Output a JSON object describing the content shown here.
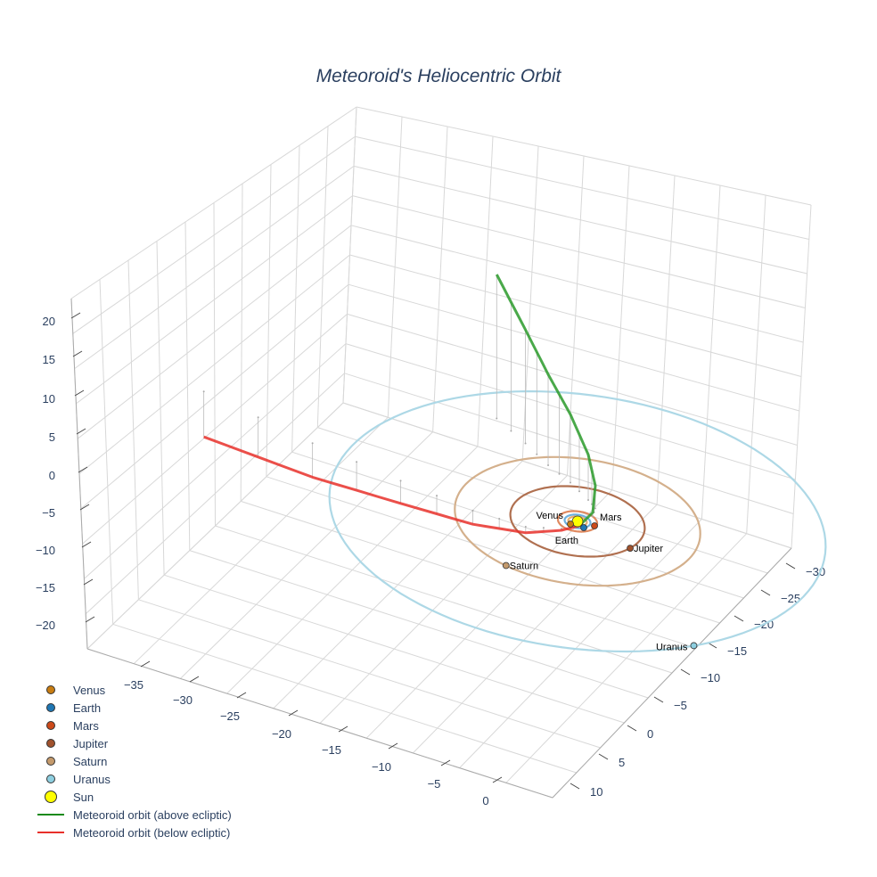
{
  "chart_data": {
    "type": "scatter3d",
    "title": "Meteoroid's Heliocentric Orbit",
    "axes": {
      "x": {
        "ticks": [
          -35,
          -30,
          -25,
          -20,
          -15,
          -10,
          -5,
          0
        ]
      },
      "y": {
        "ticks": [
          -30,
          -25,
          -20,
          -15,
          -10,
          -5,
          0,
          5,
          10
        ]
      },
      "z": {
        "ticks": [
          20,
          15,
          10,
          5,
          0,
          -5,
          -10,
          -15,
          -20
        ]
      }
    },
    "planets": [
      {
        "name": "Venus",
        "color": "#c87d12",
        "orbit_radius": 0.72,
        "position": [
          -0.29,
          0.69,
          0
        ]
      },
      {
        "name": "Earth",
        "color": "#1f77b4",
        "orbit_radius": 1.0,
        "position": [
          0.79,
          0.57,
          0
        ]
      },
      {
        "name": "Mars",
        "color": "#cc4a1a",
        "orbit_radius": 1.52,
        "position": [
          1.37,
          -0.16,
          0
        ]
      },
      {
        "name": "Jupiter",
        "color": "#a0522d",
        "orbit_radius": 5.2,
        "position": [
          5.05,
          1.27,
          0
        ]
      },
      {
        "name": "Saturn",
        "color": "#c49a6c",
        "orbit_radius": 9.5,
        "position": [
          -1.85,
          9.3,
          0
        ]
      },
      {
        "name": "Uranus",
        "color": "#8ecfe0",
        "orbit_radius": 19.2,
        "position": [
          15.2,
          11.7,
          0
        ]
      }
    ],
    "orbit_colors": {
      "Venus": "#e8b070",
      "Earth": "#6fb0de",
      "Mars": "#e08a60",
      "Jupiter": "#b07050",
      "Saturn": "#d4b08c",
      "Uranus": "#add8e6"
    },
    "sun": {
      "name": "Sun",
      "color": "#ffff00",
      "position": [
        0,
        0,
        0
      ]
    },
    "meteoroid_below": {
      "name": "Meteoroid orbit (below ecliptic)",
      "color": "#e8302a",
      "points": [
        [
          -32.1,
          -0.73,
          -6
        ],
        [
          -21.9,
          1.38,
          -4.5
        ],
        [
          -13.9,
          2.5,
          -3
        ],
        [
          -7.4,
          3.3,
          -1.8
        ],
        [
          -3.0,
          3.1,
          -0.8
        ],
        [
          -0.57,
          1.74,
          -0.2
        ],
        [
          0.39,
          0.53,
          0
        ]
      ]
    },
    "meteoroid_above": {
      "name": "Meteoroid orbit (above ecliptic)",
      "color": "#2a9a2a",
      "points": [
        [
          0.39,
          0.53,
          0
        ],
        [
          0.66,
          -1.39,
          0.5
        ],
        [
          0.34,
          -2.58,
          3
        ],
        [
          -0.64,
          -3.41,
          6
        ],
        [
          -2.87,
          -4.98,
          9
        ],
        [
          -5.38,
          -6.34,
          12
        ],
        [
          -8.2,
          -8.3,
          15
        ],
        [
          -11.6,
          -10.4,
          19
        ]
      ]
    }
  },
  "legend": [
    "Venus",
    "Earth",
    "Mars",
    "Jupiter",
    "Saturn",
    "Uranus",
    "Sun",
    "Meteoroid orbit (above ecliptic)",
    "Meteoroid orbit (below ecliptic)"
  ]
}
